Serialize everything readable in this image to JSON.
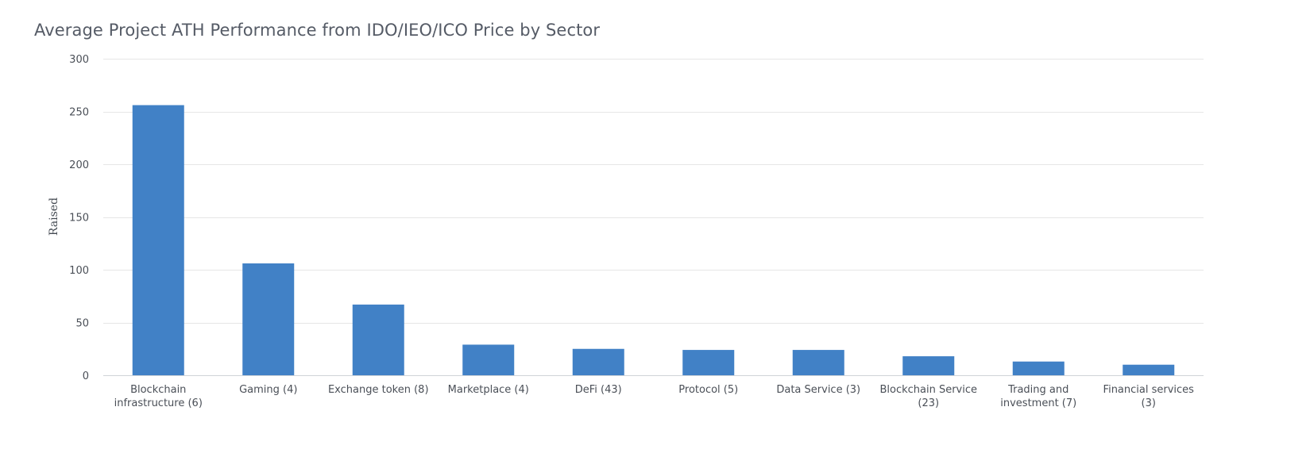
{
  "chart_data": {
    "type": "bar",
    "title": "Average Project ATH Performance from IDO/IEO/ICO Price by Sector",
    "xlabel": "",
    "ylabel": "Raised",
    "ylim": [
      0,
      300
    ],
    "yticks": [
      0,
      50,
      100,
      150,
      200,
      250,
      300
    ],
    "grid": true,
    "categories": [
      [
        "Blockchain",
        "infrastructure (6)"
      ],
      [
        "Gaming (4)"
      ],
      [
        "Exchange token (8)"
      ],
      [
        "Marketplace (4)"
      ],
      [
        "DeFi (43)"
      ],
      [
        "Protocol (5)"
      ],
      [
        "Data Service (3)"
      ],
      [
        "Blockchain Service",
        "(23)"
      ],
      [
        "Trading and",
        "investment (7)"
      ],
      [
        "Financial services",
        "(3)"
      ]
    ],
    "values": [
      256,
      106,
      67,
      29,
      25,
      24,
      24,
      18,
      13,
      10
    ],
    "colors": {
      "bar": "#4181c6"
    }
  }
}
